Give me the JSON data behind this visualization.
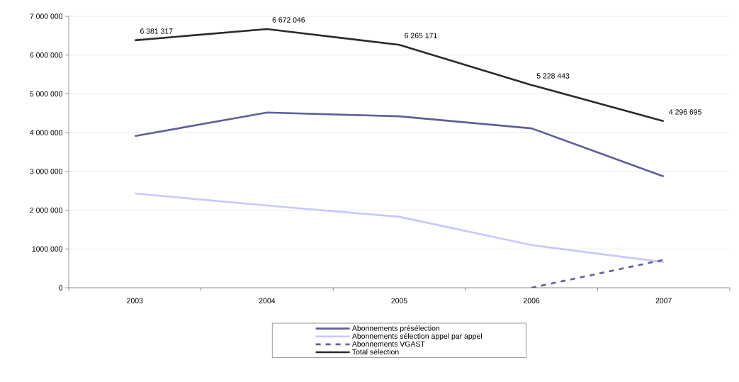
{
  "chart_data": {
    "type": "line",
    "categories": [
      "2003",
      "2004",
      "2005",
      "2006",
      "2007"
    ],
    "series": [
      {
        "name": "Abonnements présélection",
        "color": "#5f5f9b",
        "line_style": "solid",
        "values": [
          3910000,
          4520000,
          4420000,
          4110000,
          2870000
        ]
      },
      {
        "name": "Abonnements sélection appel par appel",
        "color": "#c8c8ff",
        "line_style": "solid",
        "values": [
          2430000,
          2120000,
          1830000,
          1100000,
          660000
        ]
      },
      {
        "name": "Abonnements VGAST",
        "color": "#5f5f9b",
        "line_style": "dashed",
        "values": [
          null,
          null,
          null,
          0,
          720000
        ]
      },
      {
        "name": "Total sélection",
        "color": "#2b2b2b",
        "line_style": "solid",
        "values": [
          6381317,
          6672046,
          6265171,
          5228443,
          4296695
        ],
        "value_labels": [
          "6 381 317",
          "6 672 046",
          "6 265 171",
          "5 228 443",
          "4 296 695"
        ]
      }
    ],
    "ylim": [
      0,
      7000000
    ],
    "yticks": [
      {
        "value": 0,
        "label": "0"
      },
      {
        "value": 1000000,
        "label": "1000 000"
      },
      {
        "value": 2000000,
        "label": "2 000 000"
      },
      {
        "value": 3000000,
        "label": "3 000 000"
      },
      {
        "value": 4000000,
        "label": "4 000 000"
      },
      {
        "value": 5000000,
        "label": "5 000 000"
      },
      {
        "value": 6000000,
        "label": "6 000 000"
      },
      {
        "value": 7000000,
        "label": "7 000 000"
      }
    ],
    "grid": "y",
    "legend": "bottom",
    "marker": "none"
  }
}
